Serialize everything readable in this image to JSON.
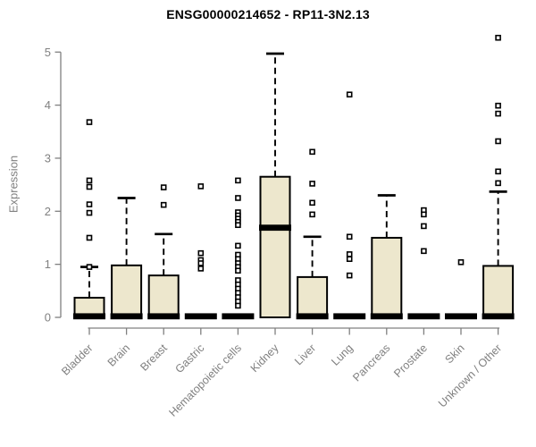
{
  "title": "ENSG00000214652 - RP11-3N2.13",
  "colors": {
    "box_fill": "#EDE7CD",
    "box_border": "#000000",
    "median": "#000000",
    "whisker": "#000000",
    "outlier_stroke": "#000000",
    "outlier_fill": "#FFFFFF",
    "axis": "#808080",
    "tick_label": "#808080",
    "title_color": "#000000",
    "background": "#FFFFFF"
  },
  "chart_data": {
    "type": "boxplot",
    "title": "ENSG00000214652 - RP11-3N2.13",
    "xlabel": "",
    "ylabel": "Expression",
    "ylim": [
      0,
      5
    ],
    "yticks": [
      0,
      1,
      2,
      3,
      4,
      5
    ],
    "grid": false,
    "legend": "none",
    "categories": [
      "Bladder",
      "Brain",
      "Breast",
      "Gastric",
      "Hematopoietic cells",
      "Kidney",
      "Liver",
      "Lung",
      "Pancreas",
      "Prostate",
      "Skin",
      "Unknown / Other"
    ],
    "series": [
      {
        "category": "Bladder",
        "whisker_low": 0,
        "q1": 0,
        "median": 0.02,
        "q3": 0.37,
        "whisker_high": 0.95,
        "outliers": [
          3.68,
          2.58,
          2.46,
          2.13,
          1.97,
          1.5,
          0.95
        ]
      },
      {
        "category": "Brain",
        "whisker_low": 0,
        "q1": 0,
        "median": 0.02,
        "q3": 0.98,
        "whisker_high": 2.25,
        "outliers": []
      },
      {
        "category": "Breast",
        "whisker_low": 0,
        "q1": 0,
        "median": 0.02,
        "q3": 0.79,
        "whisker_high": 1.57,
        "outliers": [
          2.45,
          2.12
        ]
      },
      {
        "category": "Gastric",
        "whisker_low": 0,
        "q1": 0,
        "median": 0.02,
        "q3": 0.02,
        "whisker_high": 0.02,
        "outliers": [
          2.47,
          1.21,
          1.08,
          1.02,
          0.92
        ]
      },
      {
        "category": "Hematopoietic cells",
        "whisker_low": 0,
        "q1": 0,
        "median": 0.02,
        "q3": 0.02,
        "whisker_high": 0.02,
        "outliers": [
          2.58,
          2.25,
          1.98,
          1.92,
          1.86,
          1.8,
          1.74,
          1.35,
          1.18,
          1.1,
          1.02,
          0.95,
          0.88,
          0.7,
          0.62,
          0.54,
          0.46,
          0.38,
          0.3,
          0.22
        ]
      },
      {
        "category": "Kidney",
        "whisker_low": 0,
        "q1": 0,
        "median": 1.69,
        "q3": 2.65,
        "whisker_high": 4.97,
        "outliers": []
      },
      {
        "category": "Liver",
        "whisker_low": 0,
        "q1": 0,
        "median": 0.02,
        "q3": 0.76,
        "whisker_high": 1.52,
        "outliers": [
          3.12,
          2.52,
          2.16,
          1.94
        ]
      },
      {
        "category": "Lung",
        "whisker_low": 0,
        "q1": 0,
        "median": 0.02,
        "q3": 0.02,
        "whisker_high": 0.02,
        "outliers": [
          4.2,
          1.52,
          1.19,
          1.1,
          0.79
        ]
      },
      {
        "category": "Pancreas",
        "whisker_low": 0,
        "q1": 0,
        "median": 0.02,
        "q3": 1.5,
        "whisker_high": 2.3,
        "outliers": []
      },
      {
        "category": "Prostate",
        "whisker_low": 0,
        "q1": 0,
        "median": 0.02,
        "q3": 0.02,
        "whisker_high": 0.02,
        "outliers": [
          2.02,
          1.94,
          1.72,
          1.25
        ]
      },
      {
        "category": "Skin",
        "whisker_low": 0,
        "q1": 0,
        "median": 0.02,
        "q3": 0.02,
        "whisker_high": 0.02,
        "outliers": [
          1.04
        ]
      },
      {
        "category": "Unknown / Other",
        "whisker_low": 0,
        "q1": 0,
        "median": 0.02,
        "q3": 0.97,
        "whisker_high": 2.37,
        "outliers": [
          5.27,
          3.99,
          3.84,
          3.32,
          2.75,
          2.53
        ]
      }
    ]
  }
}
